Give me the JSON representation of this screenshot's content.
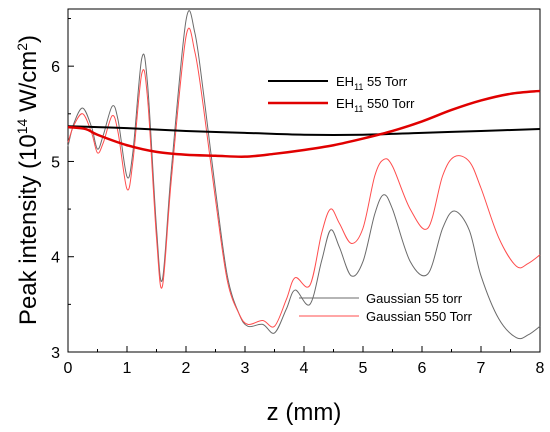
{
  "chart_data": {
    "type": "line",
    "xlabel": "z (mm)",
    "ylabel": {
      "prefix": "Peak intensity (10",
      "exp": "14",
      "mid": " W/cm",
      "exp2": "2",
      "suffix": ")"
    },
    "xlim": [
      0,
      8
    ],
    "ylim": [
      3.0,
      6.6
    ],
    "xticks": [
      "0",
      "1",
      "2",
      "3",
      "4",
      "5",
      "6",
      "7",
      "8"
    ],
    "yticks": [
      "3",
      "4",
      "5",
      "6"
    ],
    "grid": false,
    "legend_placement": [
      "upper-right",
      "lower-right"
    ],
    "series": [
      {
        "name": "EH11 55 Torr",
        "legend_main": "EH",
        "legend_sub": "11",
        "legend_rest": " 55 Torr",
        "color": "#000000",
        "points": [
          [
            0,
            5.37
          ],
          [
            0.5,
            5.36
          ],
          [
            1,
            5.35
          ],
          [
            2,
            5.32
          ],
          [
            3,
            5.3
          ],
          [
            4,
            5.28
          ],
          [
            5,
            5.28
          ],
          [
            6,
            5.3
          ],
          [
            7,
            5.32
          ],
          [
            8,
            5.34
          ]
        ]
      },
      {
        "name": "EH11 550 Torr",
        "legend_main": "EH",
        "legend_sub": "11",
        "legend_rest": " 550 Torr",
        "color": "#e00000",
        "points": [
          [
            0,
            5.36
          ],
          [
            0.3,
            5.34
          ],
          [
            0.5,
            5.28
          ],
          [
            1,
            5.17
          ],
          [
            1.5,
            5.1
          ],
          [
            2,
            5.07
          ],
          [
            2.5,
            5.06
          ],
          [
            3,
            5.05
          ],
          [
            3.5,
            5.08
          ],
          [
            4,
            5.12
          ],
          [
            4.5,
            5.17
          ],
          [
            5,
            5.24
          ],
          [
            5.5,
            5.32
          ],
          [
            6,
            5.42
          ],
          [
            6.5,
            5.54
          ],
          [
            7,
            5.64
          ],
          [
            7.5,
            5.71
          ],
          [
            8,
            5.74
          ]
        ]
      },
      {
        "name": "Gaussian 55 torr",
        "color": "#6b6b6b",
        "points": [
          [
            0,
            5.16
          ],
          [
            0.1,
            5.4
          ],
          [
            0.25,
            5.56
          ],
          [
            0.4,
            5.36
          ],
          [
            0.5,
            5.13
          ],
          [
            0.6,
            5.28
          ],
          [
            0.75,
            5.58
          ],
          [
            0.85,
            5.43
          ],
          [
            1,
            4.84
          ],
          [
            1.1,
            5.1
          ],
          [
            1.25,
            6.08
          ],
          [
            1.35,
            5.8
          ],
          [
            1.5,
            4.3
          ],
          [
            1.6,
            3.76
          ],
          [
            1.75,
            4.9
          ],
          [
            2,
            6.48
          ],
          [
            2.15,
            6.35
          ],
          [
            2.3,
            5.7
          ],
          [
            2.5,
            4.7
          ],
          [
            2.7,
            3.8
          ],
          [
            2.9,
            3.4
          ],
          [
            3.05,
            3.27
          ],
          [
            3.3,
            3.29
          ],
          [
            3.5,
            3.2
          ],
          [
            3.7,
            3.45
          ],
          [
            3.85,
            3.65
          ],
          [
            4.1,
            3.5
          ],
          [
            4.3,
            3.96
          ],
          [
            4.45,
            4.28
          ],
          [
            4.6,
            4.1
          ],
          [
            4.8,
            3.8
          ],
          [
            5,
            3.95
          ],
          [
            5.2,
            4.45
          ],
          [
            5.35,
            4.65
          ],
          [
            5.5,
            4.5
          ],
          [
            5.8,
            3.95
          ],
          [
            6.1,
            3.82
          ],
          [
            6.35,
            4.3
          ],
          [
            6.55,
            4.48
          ],
          [
            6.8,
            4.28
          ],
          [
            7,
            3.8
          ],
          [
            7.3,
            3.35
          ],
          [
            7.6,
            3.15
          ],
          [
            7.8,
            3.18
          ],
          [
            8,
            3.27
          ]
        ]
      },
      {
        "name": "Gaussian 550 Torr",
        "color": "#ff4d4d",
        "points": [
          [
            0,
            5.2
          ],
          [
            0.1,
            5.38
          ],
          [
            0.25,
            5.5
          ],
          [
            0.4,
            5.3
          ],
          [
            0.5,
            5.09
          ],
          [
            0.6,
            5.2
          ],
          [
            0.75,
            5.48
          ],
          [
            0.85,
            5.3
          ],
          [
            1,
            4.71
          ],
          [
            1.1,
            5.0
          ],
          [
            1.25,
            5.92
          ],
          [
            1.35,
            5.65
          ],
          [
            1.5,
            4.2
          ],
          [
            1.6,
            3.69
          ],
          [
            1.75,
            4.8
          ],
          [
            2,
            6.31
          ],
          [
            2.15,
            6.15
          ],
          [
            2.3,
            5.55
          ],
          [
            2.5,
            4.6
          ],
          [
            2.7,
            3.75
          ],
          [
            2.9,
            3.4
          ],
          [
            3.05,
            3.29
          ],
          [
            3.3,
            3.33
          ],
          [
            3.5,
            3.27
          ],
          [
            3.7,
            3.55
          ],
          [
            3.85,
            3.78
          ],
          [
            4.1,
            3.7
          ],
          [
            4.3,
            4.25
          ],
          [
            4.45,
            4.5
          ],
          [
            4.6,
            4.35
          ],
          [
            4.8,
            4.14
          ],
          [
            5,
            4.3
          ],
          [
            5.2,
            4.85
          ],
          [
            5.35,
            5.02
          ],
          [
            5.5,
            4.95
          ],
          [
            5.8,
            4.5
          ],
          [
            6.1,
            4.3
          ],
          [
            6.35,
            4.85
          ],
          [
            6.55,
            5.05
          ],
          [
            6.8,
            5.0
          ],
          [
            7,
            4.72
          ],
          [
            7.3,
            4.2
          ],
          [
            7.6,
            3.9
          ],
          [
            7.8,
            3.93
          ],
          [
            8,
            4.02
          ]
        ]
      }
    ]
  }
}
